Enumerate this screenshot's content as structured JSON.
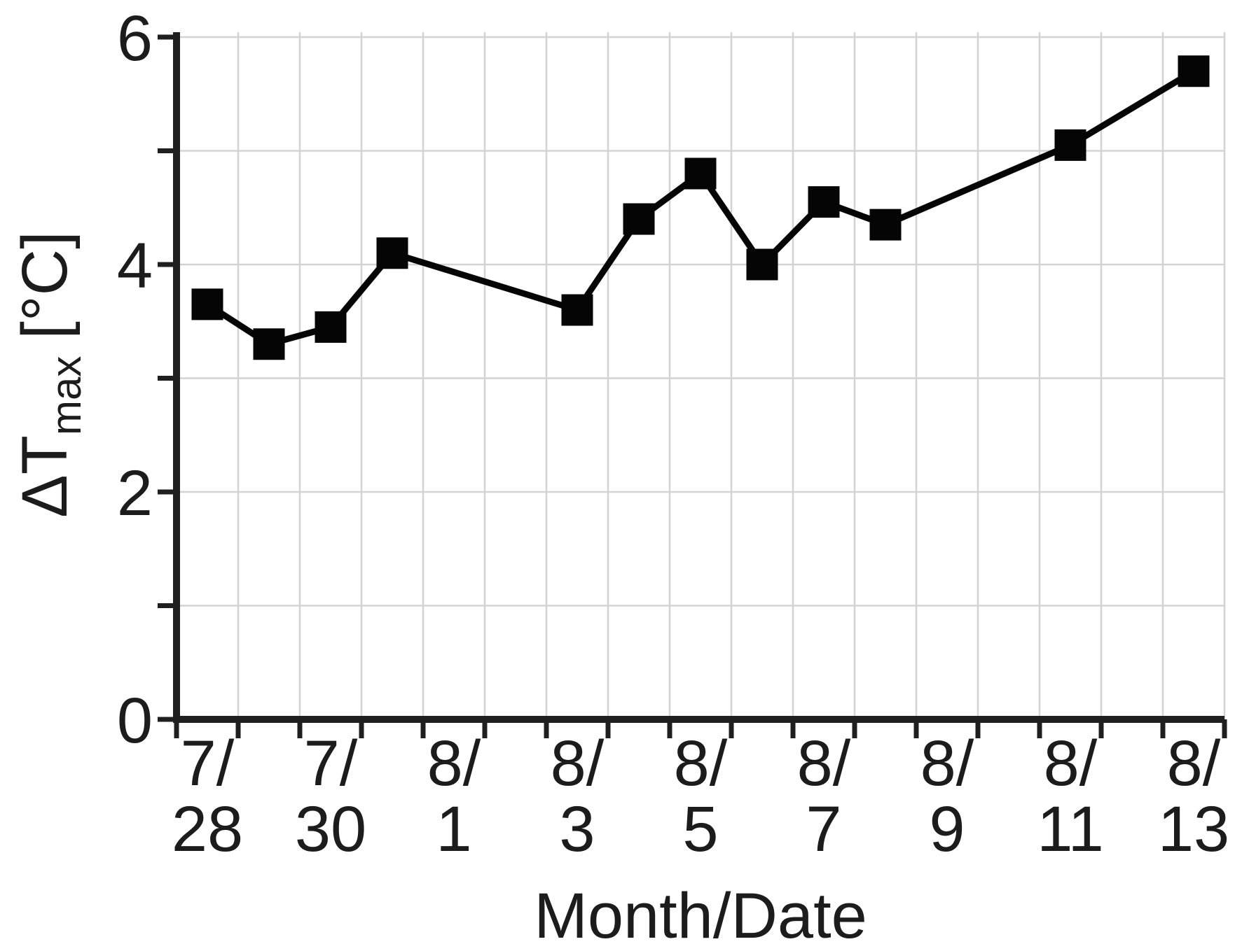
{
  "chart_data": {
    "type": "line",
    "title": "",
    "xlabel": "Month/Date",
    "ylabel": "ΔTmax [°C]",
    "ylabel_parts": {
      "main": "ΔT",
      "sub": "max",
      "unit": "[°C]"
    },
    "x_dates": [
      "7/28",
      "7/29",
      "7/30",
      "7/31",
      "8/1",
      "8/2",
      "8/3",
      "8/4",
      "8/5",
      "8/6",
      "8/7",
      "8/8",
      "8/9",
      "8/10",
      "8/11",
      "8/12",
      "8/13"
    ],
    "x_tick_labels": [
      {
        "line1": "7/",
        "line2": "28"
      },
      {
        "line1": "7/",
        "line2": "30"
      },
      {
        "line1": "8/",
        "line2": "1"
      },
      {
        "line1": "8/",
        "line2": "3"
      },
      {
        "line1": "8/",
        "line2": "5"
      },
      {
        "line1": "8/",
        "line2": "7"
      },
      {
        "line1": "8/",
        "line2": "9"
      },
      {
        "line1": "8/",
        "line2": "11"
      },
      {
        "line1": "8/",
        "line2": "13"
      }
    ],
    "x_label_every_n_days": 2,
    "points": [
      {
        "date": "7/28",
        "value": 3.65
      },
      {
        "date": "7/29",
        "value": 3.3
      },
      {
        "date": "7/30",
        "value": 3.45
      },
      {
        "date": "7/31",
        "value": 4.1
      },
      {
        "date": "8/3",
        "value": 3.6
      },
      {
        "date": "8/4",
        "value": 4.4
      },
      {
        "date": "8/5",
        "value": 4.8
      },
      {
        "date": "8/6",
        "value": 4.0
      },
      {
        "date": "8/7",
        "value": 4.55
      },
      {
        "date": "8/8",
        "value": 4.35
      },
      {
        "date": "8/11",
        "value": 5.05
      },
      {
        "date": "8/13",
        "value": 5.7
      }
    ],
    "missing_dates": [
      "8/1",
      "8/2",
      "8/9",
      "8/10",
      "8/12"
    ],
    "ylim": [
      0,
      6
    ],
    "y_major_ticks": [
      0,
      2,
      4,
      6
    ],
    "y_minor_ticks": [
      1,
      3,
      5
    ],
    "grid": true,
    "legend": "none",
    "marker": "filled-square",
    "colors": {
      "background": "#ffffff",
      "line": "#050505",
      "marker": "#050505",
      "grid": "#d3d3d3",
      "axis": "#1f1f1f",
      "text": "#1c1c1c"
    }
  }
}
